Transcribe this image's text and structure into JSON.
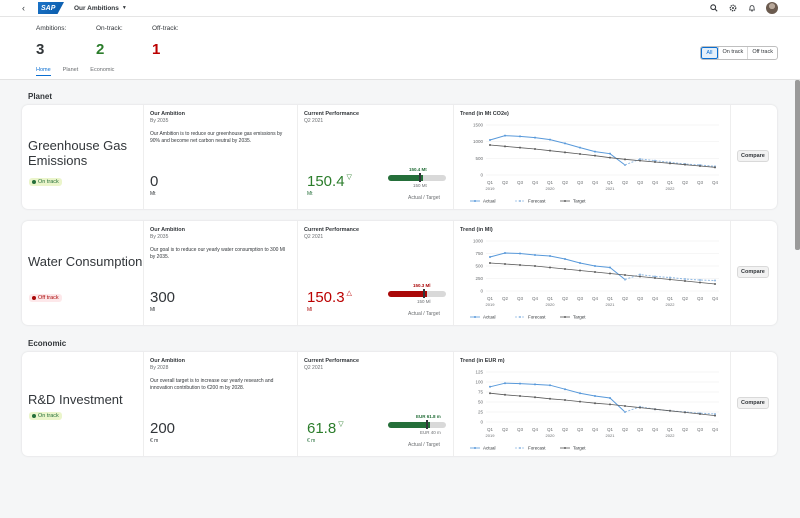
{
  "shell": {
    "title": "Our Ambitions",
    "logo": "SAP",
    "back_icon": "chevron-left-icon",
    "icons": [
      "search-icon",
      "settings-icon",
      "bell-icon",
      "avatar"
    ]
  },
  "header": {
    "kpis": [
      {
        "label": "Ambitions:",
        "value": "3",
        "color": "#32363a"
      },
      {
        "label": "On-track:",
        "value": "2",
        "color": "#2b7d2b"
      },
      {
        "label": "Off-track:",
        "value": "1",
        "color": "#bb0000"
      }
    ],
    "tabs": [
      "Home",
      "Planet",
      "Economic"
    ],
    "filters": [
      "All",
      "On track",
      "Off track"
    ]
  },
  "sections": {
    "planet": "Planet",
    "economic": "Economic"
  },
  "common": {
    "ambition_label": "Our Ambition",
    "performance_label": "Current Performance",
    "actual_target": "Actual / Target",
    "compare": "Compare",
    "legend": [
      "Actual",
      "Forecast",
      "Target"
    ]
  },
  "cards": [
    {
      "title": "Greenhouse Gas Emissions",
      "status": "On track",
      "by": "By 2035",
      "desc": "Our Ambition is to reduce our greenhouse gas emissions by 90% and become net carbon neutral by 2035.",
      "ambition_value": "0",
      "ambition_unit": "Mt",
      "period": "Q2 2021",
      "perf_value": "150.4",
      "perf_unit": "Mt",
      "bar_label": "150.4 Mt",
      "bar_target": "150 Mt",
      "trend_title": "Trend (in Mt CO2e)",
      "y_ticks": [
        "1500",
        "1000",
        "500",
        "0"
      ],
      "progress": 0.6
    },
    {
      "title": "Water Consumption",
      "status": "Off track",
      "by": "By 2035",
      "desc": "Our goal is to reduce our yearly water consumption to 300 Ml by 2035.",
      "ambition_value": "300",
      "ambition_unit": "Ml",
      "period": "Q2 2021",
      "perf_value": "150.3",
      "perf_unit": "Ml",
      "bar_label": "150.3 Ml",
      "bar_target": "150 Ml",
      "trend_title": "Trend (in Ml)",
      "y_ticks": [
        "1000",
        "750",
        "500",
        "250",
        "0"
      ],
      "progress": 0.68
    },
    {
      "title": "R&D Investment",
      "status": "On track",
      "by": "By 2028",
      "desc": "Our overall target is to increase our yearly research and innovation contribution to €200 m by 2028.",
      "ambition_value": "200",
      "ambition_unit": "€ m",
      "period": "Q2 2021",
      "perf_value": "61.8",
      "perf_unit": "€ m",
      "bar_label": "EUR 61.8 m",
      "bar_target": "EUR 40 m",
      "trend_title": "Trend (in EUR m)",
      "y_ticks": [
        "125",
        "100",
        "75",
        "50",
        "25",
        "0"
      ],
      "progress": 0.72
    }
  ],
  "chart_data": [
    {
      "type": "line",
      "title": "Trend (in Mt CO2e)",
      "categories": [
        "Q1 2019",
        "Q2",
        "Q3",
        "Q4",
        "Q1 2020",
        "Q2",
        "Q3",
        "Q4",
        "Q1 2021",
        "Q2",
        "Q3",
        "Q4",
        "Q1 2022",
        "Q2",
        "Q3",
        "Q4"
      ],
      "ylim": [
        0,
        1500
      ],
      "series": [
        {
          "name": "Actual",
          "values": [
            1050,
            1180,
            1160,
            1120,
            1060,
            950,
            820,
            700,
            640,
            300,
            null,
            null,
            null,
            null,
            null,
            null
          ]
        },
        {
          "name": "Forecast",
          "values": [
            null,
            null,
            null,
            null,
            null,
            null,
            null,
            null,
            null,
            300,
            480,
            430,
            380,
            330,
            300,
            260
          ]
        },
        {
          "name": "Target",
          "values": [
            900,
            860,
            820,
            780,
            730,
            680,
            630,
            580,
            520,
            470,
            430,
            390,
            350,
            310,
            270,
            230
          ]
        }
      ]
    },
    {
      "type": "line",
      "title": "Trend (in Ml)",
      "categories": [
        "Q1 2019",
        "Q2",
        "Q3",
        "Q4",
        "Q1 2020",
        "Q2",
        "Q3",
        "Q4",
        "Q1 2021",
        "Q2",
        "Q3",
        "Q4",
        "Q1 2022",
        "Q2",
        "Q3",
        "Q4"
      ],
      "ylim": [
        0,
        1000
      ],
      "series": [
        {
          "name": "Actual",
          "values": [
            680,
            760,
            750,
            720,
            700,
            640,
            560,
            500,
            470,
            230,
            null,
            null,
            null,
            null,
            null,
            null
          ]
        },
        {
          "name": "Forecast",
          "values": [
            null,
            null,
            null,
            null,
            null,
            null,
            null,
            null,
            null,
            230,
            330,
            290,
            270,
            240,
            220,
            210
          ]
        },
        {
          "name": "Target",
          "values": [
            560,
            540,
            520,
            500,
            470,
            440,
            410,
            380,
            350,
            320,
            290,
            260,
            230,
            200,
            170,
            140
          ]
        }
      ]
    },
    {
      "type": "line",
      "title": "Trend (in EUR m)",
      "categories": [
        "Q1 2019",
        "Q2",
        "Q3",
        "Q4",
        "Q1 2020",
        "Q2",
        "Q3",
        "Q4",
        "Q1 2021",
        "Q2",
        "Q3",
        "Q4",
        "Q1 2022",
        "Q2",
        "Q3",
        "Q4"
      ],
      "ylim": [
        0,
        125
      ],
      "series": [
        {
          "name": "Actual",
          "values": [
            88,
            97,
            96,
            94,
            92,
            82,
            72,
            65,
            60,
            25,
            null,
            null,
            null,
            null,
            null,
            null
          ]
        },
        {
          "name": "Forecast",
          "values": [
            null,
            null,
            null,
            null,
            null,
            null,
            null,
            null,
            null,
            25,
            38,
            32,
            28,
            25,
            22,
            20
          ]
        },
        {
          "name": "Target",
          "values": [
            72,
            68,
            65,
            62,
            58,
            55,
            51,
            47,
            44,
            40,
            36,
            32,
            28,
            24,
            20,
            16
          ]
        }
      ]
    }
  ]
}
